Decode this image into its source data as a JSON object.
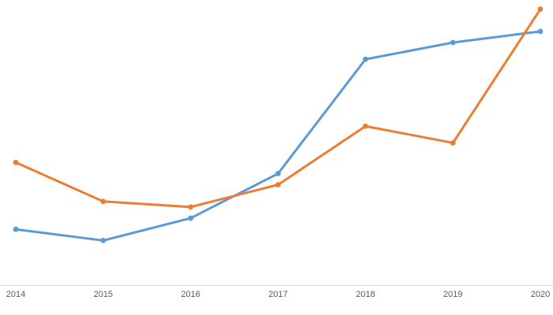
{
  "chart_data": {
    "type": "line",
    "title": "",
    "xlabel": "",
    "ylabel": "",
    "categories": [
      "2014",
      "2015",
      "2016",
      "2017",
      "2018",
      "2019",
      "2020"
    ],
    "series": [
      {
        "name": "blue",
        "color": "#5B9BD5",
        "values": [
          20,
          16,
          24,
          40,
          81,
          87,
          91
        ]
      },
      {
        "name": "orange",
        "color": "#ED7D31",
        "values": [
          44,
          30,
          28,
          36,
          57,
          51,
          99
        ]
      }
    ],
    "ylim": [
      0,
      100
    ],
    "grid": false,
    "legend": "none",
    "marker": "circle",
    "axis_line_color": "#D9D9D9",
    "tick_label_color": "#595959"
  }
}
